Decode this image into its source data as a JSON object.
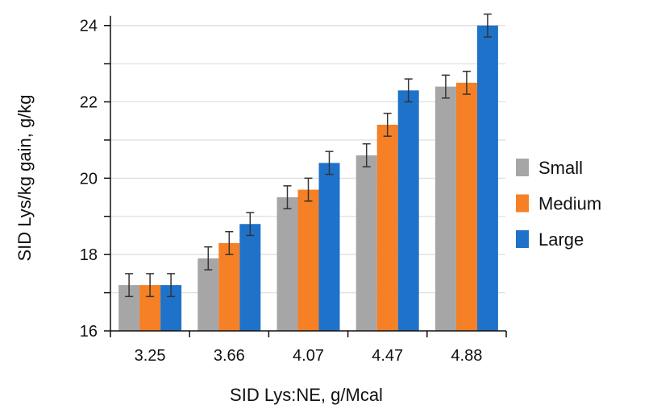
{
  "chart_data": {
    "type": "bar",
    "title": "",
    "xlabel": "SID Lys:NE, g/Mcal",
    "ylabel": "SID Lys/kg gain, g/kg",
    "categories": [
      "3.25",
      "3.66",
      "4.07",
      "4.47",
      "4.88"
    ],
    "ylim": [
      16,
      24
    ],
    "yticks": [
      "16",
      "18",
      "20",
      "22",
      "24"
    ],
    "grid": true,
    "legend_position": "right",
    "series": [
      {
        "name": "Small",
        "color": "#a6a6a6",
        "values": [
          17.2,
          17.9,
          19.5,
          20.6,
          22.4
        ],
        "errors": [
          0.3,
          0.3,
          0.3,
          0.3,
          0.3
        ]
      },
      {
        "name": "Medium",
        "color": "#f58025",
        "values": [
          17.2,
          18.3,
          19.7,
          21.4,
          22.5
        ],
        "errors": [
          0.3,
          0.3,
          0.3,
          0.3,
          0.3
        ]
      },
      {
        "name": "Large",
        "color": "#1f72c9",
        "values": [
          17.2,
          18.8,
          20.4,
          22.3,
          24.0
        ],
        "errors": [
          0.3,
          0.3,
          0.3,
          0.3,
          0.3
        ]
      }
    ]
  }
}
